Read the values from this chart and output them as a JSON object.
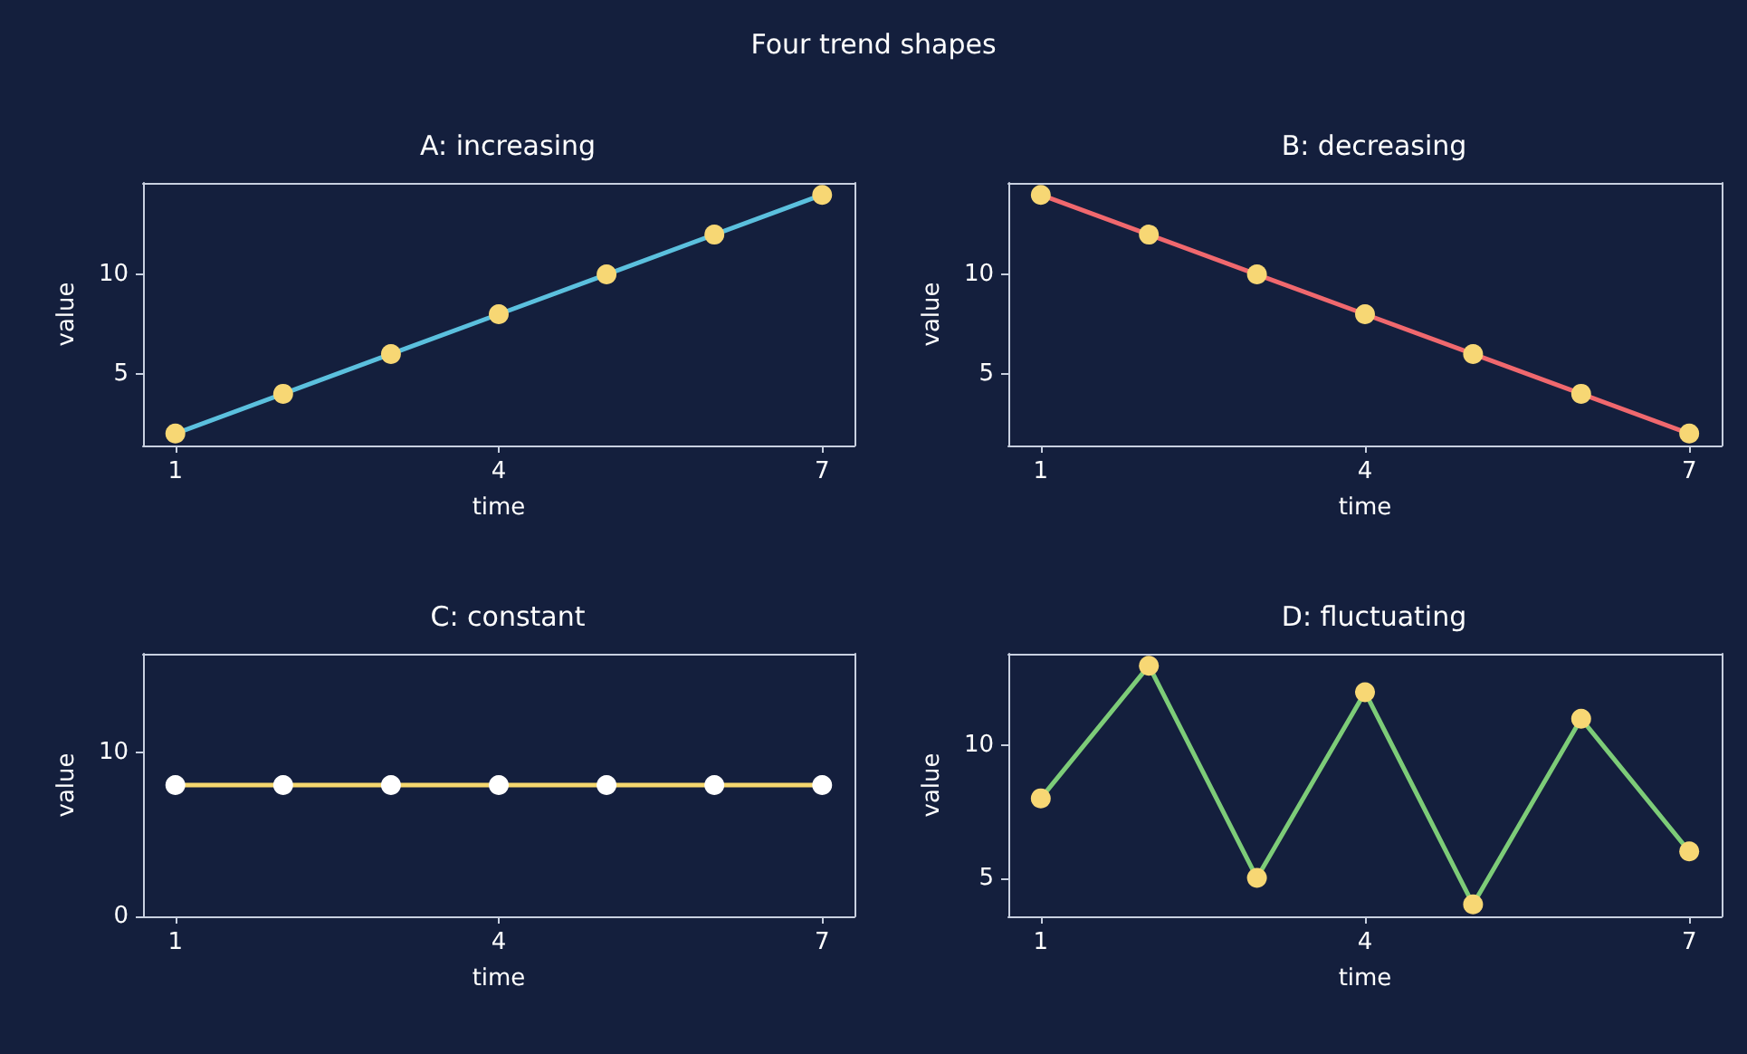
{
  "chart_data": [
    {
      "type": "other",
      "title": "Four trend shapes"
    },
    {
      "type": "line",
      "title": "A: increasing",
      "xlabel": "time",
      "ylabel": "value",
      "xlim": [
        0.7,
        7.3
      ],
      "xticks": [
        1,
        4,
        7
      ],
      "ylim": [
        1.4,
        14.6
      ],
      "yticks": [
        5,
        10
      ],
      "marker": "circle",
      "line_style": "solid",
      "x": [
        1,
        2,
        3,
        4,
        5,
        6,
        7
      ],
      "series": [
        {
          "color": "#5bc0de",
          "colors": [
            "#f7d774",
            "#f7d774",
            "#f7d774",
            "#f7d774",
            "#f7d774",
            "#f7d774",
            "#f7d774"
          ],
          "values": [
            2,
            4,
            6,
            8,
            10,
            12,
            14
          ]
        }
      ]
    },
    {
      "type": "line",
      "title": "B: decreasing",
      "xlabel": "time",
      "ylabel": "value",
      "xlim": [
        0.7,
        7.3
      ],
      "xticks": [
        1,
        4,
        7
      ],
      "ylim": [
        1.4,
        14.6
      ],
      "yticks": [
        5,
        10
      ],
      "marker": "circle",
      "line_style": "solid",
      "x": [
        1,
        2,
        3,
        4,
        5,
        6,
        7
      ],
      "series": [
        {
          "color": "#f0686e",
          "colors": [
            "#f7d774",
            "#f7d774",
            "#f7d774",
            "#f7d774",
            "#f7d774",
            "#f7d774",
            "#f7d774"
          ],
          "values": [
            14,
            12,
            10,
            8,
            6,
            4,
            2
          ]
        }
      ]
    },
    {
      "type": "line",
      "title": "C: constant",
      "xlabel": "time",
      "ylabel": "value",
      "xlim": [
        0.7,
        7.3
      ],
      "xticks": [
        1,
        4,
        7
      ],
      "ylim": [
        0,
        16
      ],
      "yticks": [
        0,
        10
      ],
      "marker": "circle",
      "line_style": "solid",
      "x": [
        1,
        2,
        3,
        4,
        5,
        6,
        7
      ],
      "series": [
        {
          "color": "#f5d76e",
          "colors": [
            "#ffffff",
            "#ffffff",
            "#ffffff",
            "#ffffff",
            "#ffffff",
            "#ffffff",
            "#ffffff"
          ],
          "values": [
            8,
            8,
            8,
            8,
            8,
            8,
            8
          ]
        }
      ]
    },
    {
      "type": "line",
      "title": "D: fluctuating",
      "xlabel": "time",
      "ylabel": "value",
      "xlim": [
        0.7,
        7.3
      ],
      "xticks": [
        1,
        4,
        7
      ],
      "ylim": [
        3.55,
        13.45
      ],
      "yticks": [
        5,
        10
      ],
      "marker": "circle",
      "line_style": "solid",
      "x": [
        1,
        2,
        3,
        4,
        5,
        6,
        7
      ],
      "series": [
        {
          "color": "#7dcc78",
          "colors": [
            "#f7d774",
            "#f7d774",
            "#f7d774",
            "#f7d774",
            "#f7d774",
            "#f7d774",
            "#f7d774"
          ],
          "values": [
            8,
            13,
            5,
            12,
            4,
            11,
            6
          ]
        }
      ]
    }
  ]
}
